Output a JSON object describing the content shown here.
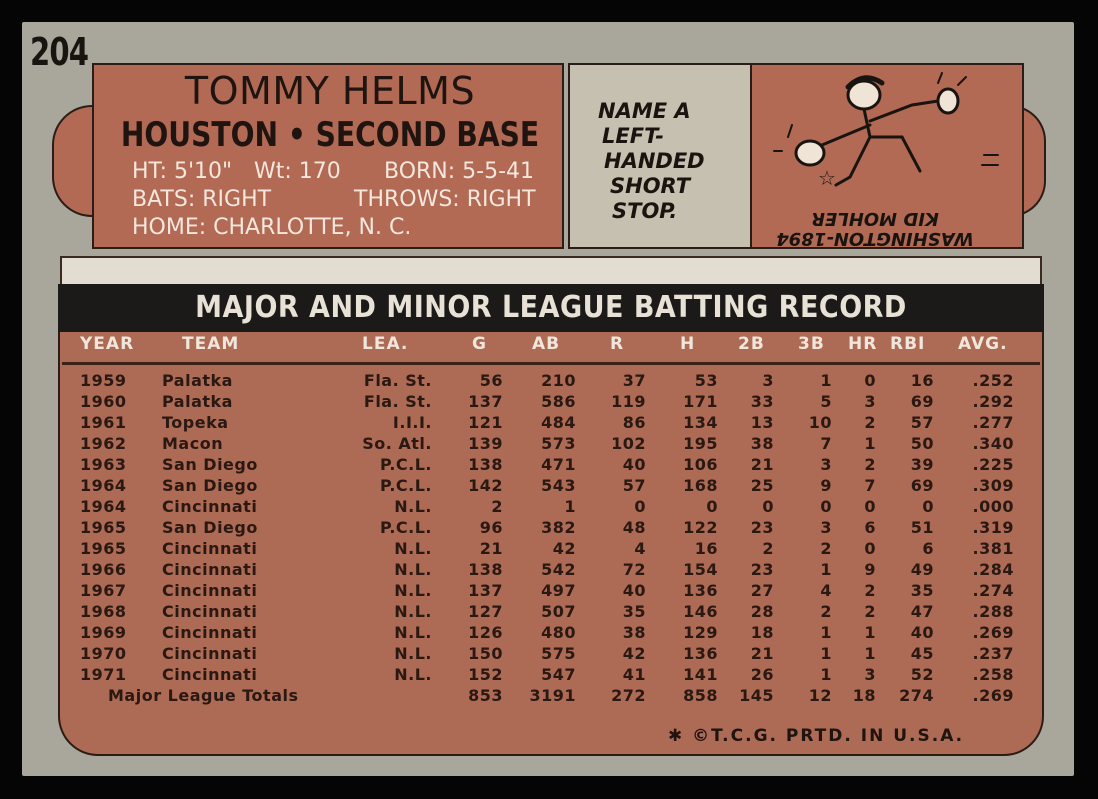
{
  "card": {
    "number": "204",
    "player_name": "TOMMY HELMS",
    "team_position": "HOUSTON • SECOND BASE",
    "ht": "HT: 5'10\"",
    "wt": "Wt: 170",
    "born": "BORN: 5-5-41",
    "bats": "BATS: RIGHT",
    "throws": "THROWS: RIGHT",
    "home": "HOME: CHARLOTTE, N. C."
  },
  "quiz": {
    "lines": [
      "NAME A",
      "LEFT-",
      "HANDED",
      "SHORT",
      "STOP."
    ],
    "answer_line1": "KID MOHLER",
    "answer_line2": "WASHINGTON-1894"
  },
  "record_title": "MAJOR AND MINOR LEAGUE BATTING RECORD",
  "columns": [
    "YEAR",
    "TEAM",
    "LEA.",
    "G",
    "AB",
    "R",
    "H",
    "2B",
    "3B",
    "HR",
    "RBI",
    "AVG."
  ],
  "rows": [
    [
      "1959",
      "Palatka",
      "Fla. St.",
      "56",
      "210",
      "37",
      "53",
      "3",
      "1",
      "0",
      "16",
      ".252"
    ],
    [
      "1960",
      "Palatka",
      "Fla. St.",
      "137",
      "586",
      "119",
      "171",
      "33",
      "5",
      "3",
      "69",
      ".292"
    ],
    [
      "1961",
      "Topeka",
      "I.I.I.",
      "121",
      "484",
      "86",
      "134",
      "13",
      "10",
      "2",
      "57",
      ".277"
    ],
    [
      "1962",
      "Macon",
      "So. Atl.",
      "139",
      "573",
      "102",
      "195",
      "38",
      "7",
      "1",
      "50",
      ".340"
    ],
    [
      "1963",
      "San Diego",
      "P.C.L.",
      "138",
      "471",
      "40",
      "106",
      "21",
      "3",
      "2",
      "39",
      ".225"
    ],
    [
      "1964",
      "San Diego",
      "P.C.L.",
      "142",
      "543",
      "57",
      "168",
      "25",
      "9",
      "7",
      "69",
      ".309"
    ],
    [
      "1964",
      "Cincinnati",
      "N.L.",
      "2",
      "1",
      "0",
      "0",
      "0",
      "0",
      "0",
      "0",
      ".000"
    ],
    [
      "1965",
      "San Diego",
      "P.C.L.",
      "96",
      "382",
      "48",
      "122",
      "23",
      "3",
      "6",
      "51",
      ".319"
    ],
    [
      "1965",
      "Cincinnati",
      "N.L.",
      "21",
      "42",
      "4",
      "16",
      "2",
      "2",
      "0",
      "6",
      ".381"
    ],
    [
      "1966",
      "Cincinnati",
      "N.L.",
      "138",
      "542",
      "72",
      "154",
      "23",
      "1",
      "9",
      "49",
      ".284"
    ],
    [
      "1967",
      "Cincinnati",
      "N.L.",
      "137",
      "497",
      "40",
      "136",
      "27",
      "4",
      "2",
      "35",
      ".274"
    ],
    [
      "1968",
      "Cincinnati",
      "N.L.",
      "127",
      "507",
      "35",
      "146",
      "28",
      "2",
      "2",
      "47",
      ".288"
    ],
    [
      "1969",
      "Cincinnati",
      "N.L.",
      "126",
      "480",
      "38",
      "129",
      "18",
      "1",
      "1",
      "40",
      ".269"
    ],
    [
      "1970",
      "Cincinnati",
      "N.L.",
      "150",
      "575",
      "42",
      "136",
      "21",
      "1",
      "1",
      "45",
      ".237"
    ],
    [
      "1971",
      "Cincinnati",
      "N.L.",
      "152",
      "547",
      "41",
      "141",
      "26",
      "1",
      "3",
      "52",
      ".258"
    ]
  ],
  "totals": {
    "label": "Major League Totals",
    "values": [
      "853",
      "3191",
      "272",
      "858",
      "145",
      "12",
      "18",
      "274",
      ".269"
    ]
  },
  "footer": "✱ ©T.C.G. PRTD. IN U.S.A."
}
